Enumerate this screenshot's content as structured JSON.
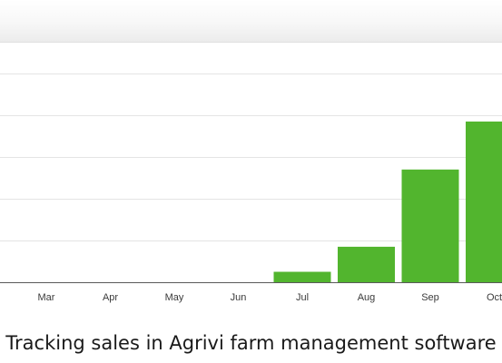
{
  "caption": "Tracking sales in Agrivi farm management software",
  "chart_data": {
    "type": "bar",
    "categories": [
      "Mar",
      "Apr",
      "May",
      "Jun",
      "Jul",
      "Aug",
      "Sep",
      "Oct"
    ],
    "values": [
      0,
      0,
      0,
      0,
      0.5,
      1.7,
      5.4,
      7.7
    ],
    "ylim": [
      0,
      10
    ],
    "grid": true,
    "bar_color": "#52b52e",
    "grid_color": "#e4e4e4",
    "axis_color": "#5a5a5a",
    "tick_label_color": "#3a3a3a"
  }
}
